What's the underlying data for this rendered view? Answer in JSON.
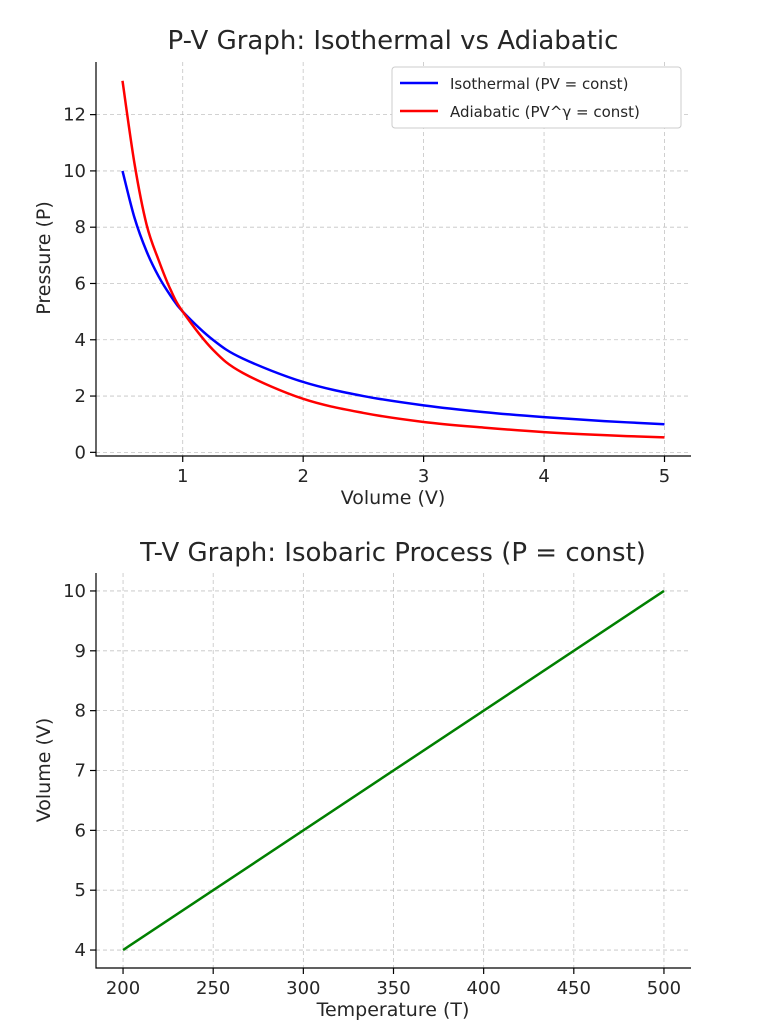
{
  "chart_data": [
    {
      "type": "line",
      "title": "P-V Graph: Isothermal vs Adiabatic",
      "xlabel": "Volume (V)",
      "ylabel": "Pressure (P)",
      "xlim": [
        0.28,
        5.22
      ],
      "ylim": [
        -0.13,
        13.87
      ],
      "xticks": [
        1,
        2,
        3,
        4,
        5
      ],
      "yticks": [
        0,
        2,
        4,
        6,
        8,
        10,
        12
      ],
      "grid": true,
      "legend": "top-right",
      "series": [
        {
          "name": "Isothermal (PV = const)",
          "color": "#0000ff",
          "formula": "PV = const",
          "x": [
            0.5,
            0.6,
            0.7,
            0.8,
            0.9,
            1.0,
            1.25,
            1.5,
            2.0,
            2.5,
            3.0,
            3.5,
            4.0,
            4.5,
            5.0
          ],
          "values": [
            10.0,
            8.33,
            7.14,
            6.25,
            5.56,
            5.0,
            4.0,
            3.33,
            2.5,
            2.0,
            1.67,
            1.43,
            1.25,
            1.11,
            1.0
          ]
        },
        {
          "name": "Adiabatic (PV^γ = const)",
          "color": "#ff0000",
          "formula": "PV^γ = const",
          "x": [
            0.5,
            0.6,
            0.7,
            0.8,
            0.9,
            1.0,
            1.25,
            1.5,
            2.0,
            2.5,
            3.0,
            3.5,
            4.0,
            4.5,
            5.0
          ],
          "values": [
            13.2,
            10.25,
            8.09,
            6.83,
            5.77,
            5.0,
            3.65,
            2.82,
            1.9,
            1.4,
            1.08,
            0.88,
            0.72,
            0.61,
            0.53
          ]
        }
      ]
    },
    {
      "type": "line",
      "title": "T-V Graph: Isobaric Process (P = const)",
      "xlabel": "Temperature (T)",
      "ylabel": "Volume (V)",
      "xlim": [
        185,
        515
      ],
      "ylim": [
        3.7,
        10.3
      ],
      "xticks": [
        200,
        250,
        300,
        350,
        400,
        450,
        500
      ],
      "yticks": [
        4,
        5,
        6,
        7,
        8,
        9,
        10
      ],
      "grid": true,
      "legend": "none",
      "series": [
        {
          "color": "#008000",
          "x": [
            200,
            500
          ],
          "values": [
            4,
            10
          ]
        }
      ]
    }
  ]
}
